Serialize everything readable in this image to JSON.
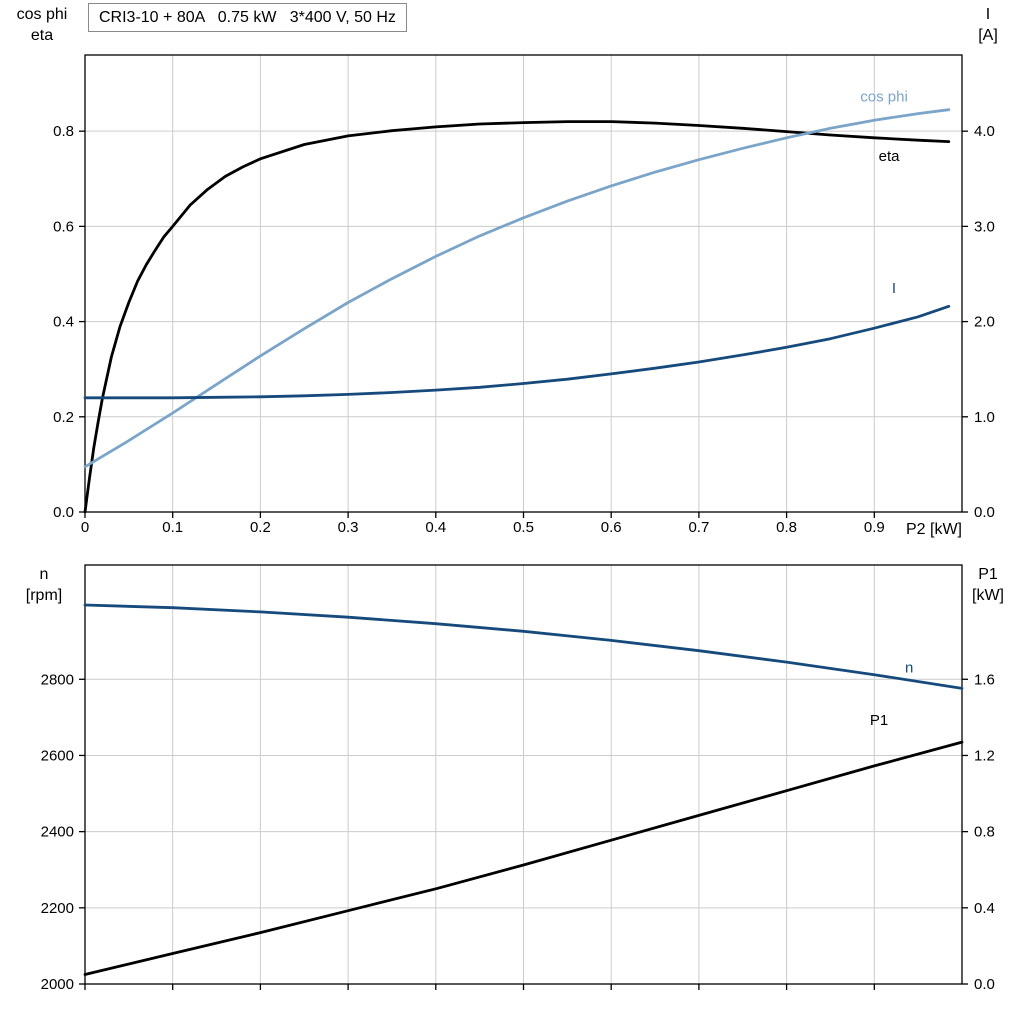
{
  "title_box": "CRI3-10 + 80A   0.75 kW   3*400 V, 50 Hz",
  "colors": {
    "black": "#000000",
    "light_blue": "#7BA4C9",
    "dark_blue": "#174A7C",
    "grid": "#cccccc",
    "frame": "#000000"
  },
  "chart_data": [
    {
      "type": "line",
      "title": "CRI3-10 + 80A   0.75 kW   3*400 V, 50 Hz",
      "grid": true,
      "legend_position": "inline-labels",
      "x_axis": {
        "min": 0,
        "max": 1.0,
        "ticks": [
          0,
          0.1,
          0.2,
          0.3,
          0.4,
          0.5,
          0.6,
          0.7,
          0.8,
          0.9
        ],
        "tick_labels": [
          "0",
          "0.1",
          "0.2",
          "0.3",
          "0.4",
          "0.5",
          "0.6",
          "0.7",
          "0.8",
          "0.9"
        ],
        "label": "P2 [kW]"
      },
      "left_axis": {
        "label_lines": [
          "cos phi",
          "eta"
        ],
        "min": 0,
        "max": 0.96,
        "ticks": [
          0,
          0.2,
          0.4,
          0.6,
          0.8
        ],
        "tick_labels": [
          "0.0",
          "0.2",
          "0.4",
          "0.6",
          "0.8"
        ]
      },
      "right_axis": {
        "label_lines": [
          "I",
          "[A]"
        ],
        "min": 0,
        "max": 4.8,
        "ticks": [
          0,
          1,
          2,
          3,
          4
        ],
        "tick_labels": [
          "0.0",
          "1.0",
          "2.0",
          "3.0",
          "4.0"
        ]
      },
      "series": [
        {
          "name": "eta",
          "label": "eta",
          "axis": "left",
          "color": "#000000",
          "label_x": 0.905,
          "label_y": 0.737,
          "points": [
            [
              0,
              0
            ],
            [
              0.005,
              0.07
            ],
            [
              0.01,
              0.135
            ],
            [
              0.015,
              0.19
            ],
            [
              0.02,
              0.24
            ],
            [
              0.03,
              0.325
            ],
            [
              0.04,
              0.39
            ],
            [
              0.05,
              0.44
            ],
            [
              0.06,
              0.485
            ],
            [
              0.07,
              0.52
            ],
            [
              0.08,
              0.55
            ],
            [
              0.09,
              0.578
            ],
            [
              0.1,
              0.6
            ],
            [
              0.12,
              0.645
            ],
            [
              0.14,
              0.678
            ],
            [
              0.16,
              0.705
            ],
            [
              0.18,
              0.725
            ],
            [
              0.2,
              0.742
            ],
            [
              0.25,
              0.772
            ],
            [
              0.3,
              0.79
            ],
            [
              0.35,
              0.801
            ],
            [
              0.4,
              0.809
            ],
            [
              0.45,
              0.815
            ],
            [
              0.5,
              0.818
            ],
            [
              0.55,
              0.82
            ],
            [
              0.6,
              0.82
            ],
            [
              0.65,
              0.817
            ],
            [
              0.7,
              0.812
            ],
            [
              0.75,
              0.806
            ],
            [
              0.8,
              0.799
            ],
            [
              0.85,
              0.792
            ],
            [
              0.9,
              0.786
            ],
            [
              0.95,
              0.781
            ],
            [
              0.985,
              0.778
            ]
          ]
        },
        {
          "name": "cos-phi",
          "label": "cos phi",
          "axis": "left",
          "color": "#7BA4C9",
          "label_x": 0.884,
          "label_y": 0.862,
          "points": [
            [
              0,
              0.095
            ],
            [
              0.05,
              0.15
            ],
            [
              0.1,
              0.208
            ],
            [
              0.15,
              0.268
            ],
            [
              0.2,
              0.328
            ],
            [
              0.25,
              0.385
            ],
            [
              0.3,
              0.44
            ],
            [
              0.35,
              0.49
            ],
            [
              0.4,
              0.537
            ],
            [
              0.45,
              0.58
            ],
            [
              0.5,
              0.618
            ],
            [
              0.55,
              0.653
            ],
            [
              0.6,
              0.685
            ],
            [
              0.65,
              0.714
            ],
            [
              0.7,
              0.74
            ],
            [
              0.75,
              0.764
            ],
            [
              0.8,
              0.786
            ],
            [
              0.85,
              0.806
            ],
            [
              0.9,
              0.823
            ],
            [
              0.95,
              0.837
            ],
            [
              0.985,
              0.845
            ]
          ]
        },
        {
          "name": "I",
          "label": "I",
          "axis": "right",
          "color": "#174A7C",
          "label_x": 0.92,
          "label_y": 2.3,
          "points": [
            [
              0,
              1.2
            ],
            [
              0.05,
              1.2
            ],
            [
              0.1,
              1.2
            ],
            [
              0.15,
              1.205
            ],
            [
              0.2,
              1.21
            ],
            [
              0.25,
              1.22
            ],
            [
              0.3,
              1.235
            ],
            [
              0.35,
              1.255
            ],
            [
              0.4,
              1.28
            ],
            [
              0.45,
              1.31
            ],
            [
              0.5,
              1.35
            ],
            [
              0.55,
              1.395
            ],
            [
              0.6,
              1.45
            ],
            [
              0.65,
              1.51
            ],
            [
              0.7,
              1.575
            ],
            [
              0.75,
              1.65
            ],
            [
              0.8,
              1.73
            ],
            [
              0.85,
              1.82
            ],
            [
              0.9,
              1.93
            ],
            [
              0.95,
              2.05
            ],
            [
              0.985,
              2.16
            ]
          ]
        }
      ]
    },
    {
      "type": "line",
      "title": "",
      "grid": true,
      "legend_position": "inline-labels",
      "x_axis": {
        "min": 0,
        "max": 1.0,
        "ticks": [
          0,
          0.1,
          0.2,
          0.3,
          0.4,
          0.5,
          0.6,
          0.7,
          0.8,
          0.9
        ],
        "tick_labels": [],
        "label": ""
      },
      "left_axis": {
        "label_lines": [
          "n",
          "[rpm]"
        ],
        "min": 2000,
        "max": 3100,
        "ticks": [
          2000,
          2200,
          2400,
          2600,
          2800
        ],
        "tick_labels": [
          "2000",
          "2200",
          "2400",
          "2600",
          "2800"
        ]
      },
      "right_axis": {
        "label_lines": [
          "P1",
          "[kW]"
        ],
        "min": 0,
        "max": 2.2,
        "ticks": [
          0,
          0.4,
          0.8,
          1.2,
          1.6
        ],
        "tick_labels": [
          "0.0",
          "0.4",
          "0.8",
          "1.2",
          "1.6"
        ]
      },
      "series": [
        {
          "name": "n",
          "label": "n",
          "axis": "left",
          "color": "#174A7C",
          "label_x": 0.935,
          "label_y": 2818,
          "points": [
            [
              0,
              2995
            ],
            [
              0.1,
              2988
            ],
            [
              0.2,
              2977
            ],
            [
              0.3,
              2963
            ],
            [
              0.4,
              2946
            ],
            [
              0.5,
              2926
            ],
            [
              0.6,
              2902
            ],
            [
              0.7,
              2875
            ],
            [
              0.8,
              2845
            ],
            [
              0.9,
              2812
            ],
            [
              1.0,
              2776
            ]
          ]
        },
        {
          "name": "P1",
          "label": "P1",
          "axis": "right",
          "color": "#000000",
          "label_x": 0.895,
          "label_y": 1.36,
          "points": [
            [
              0,
              0.05
            ],
            [
              0.1,
              0.16
            ],
            [
              0.2,
              0.27
            ],
            [
              0.3,
              0.385
            ],
            [
              0.4,
              0.5
            ],
            [
              0.5,
              0.625
            ],
            [
              0.6,
              0.755
            ],
            [
              0.7,
              0.885
            ],
            [
              0.8,
              1.015
            ],
            [
              0.9,
              1.145
            ],
            [
              1.0,
              1.27
            ]
          ]
        }
      ]
    }
  ]
}
